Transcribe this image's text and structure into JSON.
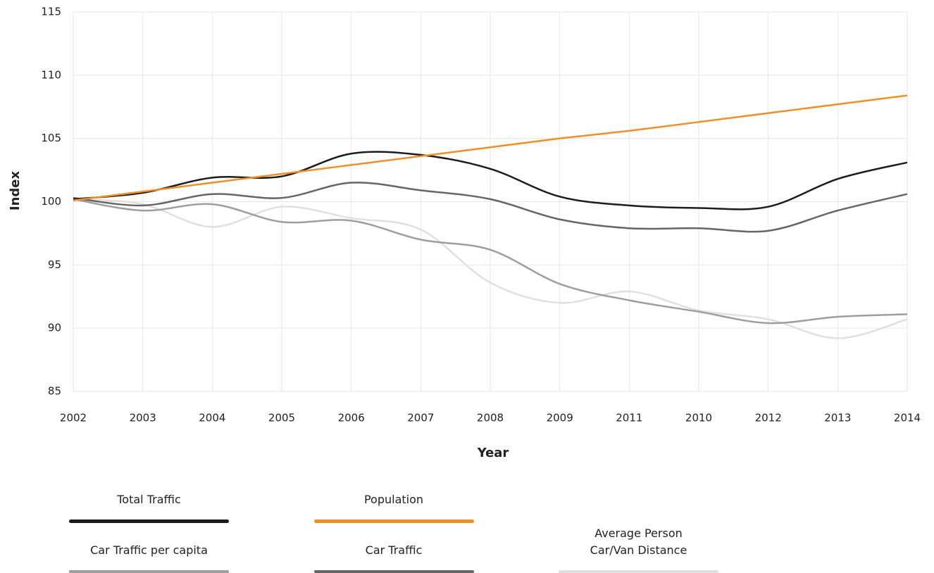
{
  "chart_data": {
    "type": "line",
    "x_label": "Year",
    "y_label": "Index",
    "categories": [
      "2002",
      "2003",
      "2004",
      "2005",
      "2006",
      "2007",
      "2008",
      "2009",
      "2011",
      "2010",
      "2012",
      "2013",
      "2014"
    ],
    "series": [
      {
        "name": "Total Traffic",
        "color": "#1c1c1c",
        "values": [
          100.2,
          100.7,
          101.9,
          102.0,
          103.8,
          103.7,
          102.6,
          100.4,
          99.7,
          99.5,
          99.6,
          101.8,
          103.1
        ]
      },
      {
        "name": "Population",
        "color": "#ef8f25",
        "values": [
          100.1,
          100.8,
          101.5,
          102.2,
          102.9,
          103.6,
          104.3,
          105.0,
          105.6,
          106.3,
          107.0,
          107.7,
          108.4
        ]
      },
      {
        "name": "Car Traffic per capita",
        "color": "#9e9e9e",
        "values": [
          100.2,
          99.3,
          99.8,
          98.4,
          98.5,
          97.0,
          96.2,
          93.5,
          92.2,
          91.3,
          90.4,
          90.9,
          91.1
        ]
      },
      {
        "name": "Car Traffic",
        "color": "#666666",
        "values": [
          100.3,
          99.7,
          100.6,
          100.3,
          101.5,
          100.9,
          100.2,
          98.6,
          97.9,
          97.9,
          97.7,
          99.3,
          100.6
        ]
      },
      {
        "name": "Average Person Car/Van Distance",
        "color": "#e0e0e0",
        "values": [
          100.2,
          99.8,
          98.0,
          99.6,
          98.7,
          97.8,
          93.6,
          92.0,
          92.9,
          91.4,
          90.7,
          89.2,
          90.7
        ]
      }
    ],
    "ylim": [
      85,
      115
    ],
    "yticks": [
      85,
      90,
      95,
      100,
      105,
      110,
      115
    ],
    "grid": true
  }
}
